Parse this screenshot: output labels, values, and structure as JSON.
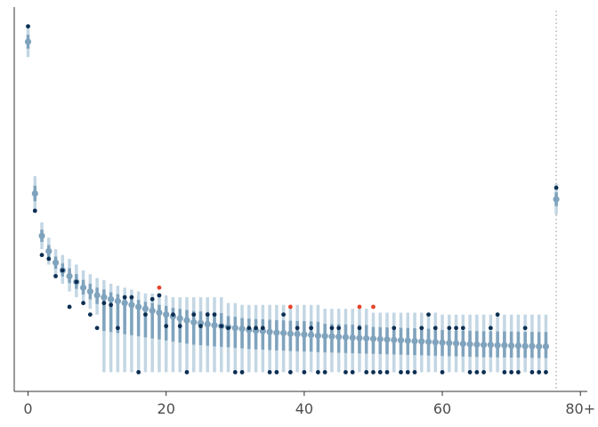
{
  "chart_data": {
    "type": "scatter",
    "title": "",
    "xlabel": "",
    "ylabel": "",
    "x_axis": {
      "range": [
        -2,
        81
      ],
      "ticks": [
        0,
        20,
        40,
        60,
        80
      ],
      "tick_labels": [
        "0",
        "20",
        "40",
        "60",
        "80+"
      ]
    },
    "y_axis": {
      "range": [
        0,
        1
      ],
      "ticks": [],
      "tick_labels": []
    },
    "grid": false,
    "legend": "none",
    "reference_line": {
      "x": 76.5,
      "style": "dotted"
    },
    "colors": {
      "estimate": "#7fa3bd",
      "interval_outer": "#c3d6e3",
      "interval_inner": "#7fa3bd",
      "observed": "#0b2e52",
      "flagged": "#e8432b",
      "axis": "#333333",
      "reference_line": "#b3b3b3"
    },
    "series": [
      {
        "name": "estimate",
        "x": [
          0,
          1,
          2,
          3,
          4,
          5,
          6,
          7,
          8,
          9,
          10,
          11,
          12,
          13,
          14,
          15,
          16,
          17,
          18,
          19,
          20,
          21,
          22,
          23,
          24,
          25,
          26,
          27,
          28,
          29,
          30,
          31,
          32,
          33,
          34,
          35,
          36,
          37,
          38,
          39,
          40,
          41,
          42,
          43,
          44,
          45,
          46,
          47,
          48,
          49,
          50,
          51,
          52,
          53,
          54,
          55,
          56,
          57,
          58,
          59,
          60,
          61,
          62,
          63,
          64,
          65,
          66,
          67,
          68,
          69,
          70,
          71,
          72,
          73,
          74,
          75,
          76.5
        ],
        "y": [
          0.91,
          0.515,
          0.405,
          0.365,
          0.335,
          0.315,
          0.3,
          0.285,
          0.27,
          0.26,
          0.25,
          0.245,
          0.24,
          0.235,
          0.23,
          0.225,
          0.22,
          0.215,
          0.21,
          0.205,
          0.2,
          0.195,
          0.19,
          0.185,
          0.18,
          0.178,
          0.175,
          0.172,
          0.17,
          0.168,
          0.165,
          0.163,
          0.16,
          0.158,
          0.157,
          0.155,
          0.153,
          0.152,
          0.15,
          0.149,
          0.148,
          0.147,
          0.145,
          0.144,
          0.143,
          0.142,
          0.141,
          0.14,
          0.139,
          0.138,
          0.137,
          0.136,
          0.135,
          0.134,
          0.133,
          0.132,
          0.131,
          0.13,
          0.129,
          0.128,
          0.127,
          0.126,
          0.125,
          0.124,
          0.123,
          0.122,
          0.121,
          0.121,
          0.12,
          0.12,
          0.119,
          0.119,
          0.118,
          0.118,
          0.117,
          0.117,
          0.5
        ],
        "lower": [
          0.87,
          0.47,
          0.37,
          0.33,
          0.3,
          0.28,
          0.26,
          0.245,
          0.23,
          0.215,
          0.2,
          0.05,
          0.05,
          0.05,
          0.05,
          0.05,
          0.05,
          0.05,
          0.05,
          0.05,
          0.05,
          0.05,
          0.05,
          0.05,
          0.05,
          0.05,
          0.05,
          0.05,
          0.05,
          0.05,
          0.05,
          0.05,
          0.05,
          0.05,
          0.05,
          0.05,
          0.05,
          0.05,
          0.05,
          0.05,
          0.05,
          0.05,
          0.05,
          0.05,
          0.05,
          0.05,
          0.05,
          0.05,
          0.05,
          0.05,
          0.05,
          0.05,
          0.05,
          0.05,
          0.05,
          0.05,
          0.05,
          0.05,
          0.05,
          0.05,
          0.05,
          0.05,
          0.05,
          0.05,
          0.05,
          0.05,
          0.05,
          0.05,
          0.05,
          0.05,
          0.05,
          0.05,
          0.05,
          0.05,
          0.05,
          0.05,
          0.46
        ],
        "upper": [
          0.95,
          0.56,
          0.44,
          0.4,
          0.37,
          0.355,
          0.345,
          0.33,
          0.315,
          0.305,
          0.295,
          0.29,
          0.28,
          0.275,
          0.27,
          0.265,
          0.26,
          0.255,
          0.255,
          0.25,
          0.25,
          0.245,
          0.245,
          0.245,
          0.245,
          0.245,
          0.245,
          0.245,
          0.245,
          0.23,
          0.23,
          0.225,
          0.225,
          0.225,
          0.225,
          0.225,
          0.225,
          0.225,
          0.225,
          0.225,
          0.225,
          0.225,
          0.225,
          0.215,
          0.215,
          0.215,
          0.215,
          0.215,
          0.215,
          0.215,
          0.205,
          0.205,
          0.205,
          0.205,
          0.205,
          0.205,
          0.205,
          0.205,
          0.205,
          0.205,
          0.2,
          0.2,
          0.2,
          0.2,
          0.2,
          0.2,
          0.2,
          0.2,
          0.2,
          0.2,
          0.2,
          0.2,
          0.2,
          0.2,
          0.2,
          0.2,
          0.54
        ]
      },
      {
        "name": "observed",
        "x": [
          0,
          1,
          2,
          3,
          4,
          5,
          6,
          7,
          8,
          9,
          10,
          11,
          12,
          13,
          14,
          15,
          16,
          17,
          18,
          19,
          20,
          21,
          22,
          23,
          24,
          25,
          26,
          27,
          28,
          29,
          30,
          31,
          32,
          33,
          34,
          35,
          36,
          37,
          38,
          39,
          40,
          41,
          42,
          43,
          44,
          45,
          46,
          47,
          48,
          49,
          50,
          51,
          52,
          53,
          54,
          55,
          56,
          57,
          58,
          59,
          60,
          61,
          62,
          63,
          64,
          65,
          66,
          67,
          68,
          69,
          70,
          71,
          72,
          73,
          74,
          75,
          76.5
        ],
        "y": [
          0.95,
          0.47,
          0.355,
          0.345,
          0.3,
          0.315,
          0.22,
          0.285,
          0.23,
          0.2,
          0.165,
          0.23,
          0.225,
          0.165,
          0.245,
          0.245,
          0.05,
          0.2,
          0.24,
          0.25,
          0.17,
          0.2,
          0.17,
          0.05,
          0.2,
          0.17,
          0.2,
          0.2,
          0.17,
          0.165,
          0.05,
          0.05,
          0.165,
          0.165,
          0.165,
          0.05,
          0.05,
          0.2,
          0.05,
          0.165,
          0.05,
          0.165,
          0.05,
          0.05,
          0.165,
          0.165,
          0.05,
          0.05,
          0.165,
          0.05,
          0.05,
          0.05,
          0.05,
          0.165,
          0.05,
          0.05,
          0.05,
          0.165,
          0.2,
          0.165,
          0.05,
          0.165,
          0.165,
          0.165,
          0.05,
          0.05,
          0.05,
          0.165,
          0.2,
          0.05,
          0.05,
          0.05,
          0.165,
          0.05,
          0.05,
          0.05,
          0.53
        ]
      },
      {
        "name": "flagged",
        "x": [
          19,
          38,
          48,
          50
        ],
        "y": [
          0.27,
          0.22,
          0.22,
          0.22
        ]
      }
    ]
  }
}
